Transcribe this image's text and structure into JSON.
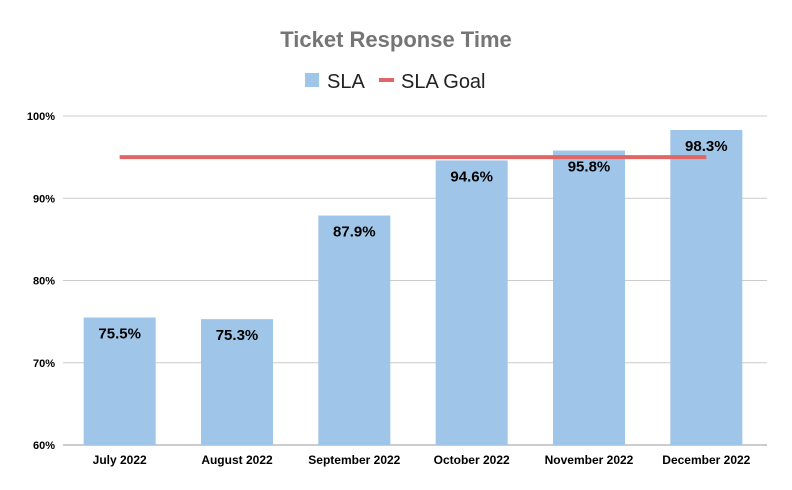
{
  "chart_data": {
    "type": "bar",
    "title": "Ticket Response Time",
    "categories": [
      "July 2022",
      "August 2022",
      "September 2022",
      "October 2022",
      "November 2022",
      "December 2022"
    ],
    "series": [
      {
        "name": "SLA",
        "kind": "bar",
        "color": "#9fc5e8",
        "values": [
          75.5,
          75.3,
          87.9,
          94.6,
          95.8,
          98.3
        ],
        "labels": [
          "75.5%",
          "75.3%",
          "87.9%",
          "94.6%",
          "95.8%",
          "98.3%"
        ]
      },
      {
        "name": "SLA Goal",
        "kind": "line",
        "color": "#e06666",
        "values": [
          95,
          95,
          95,
          95,
          95,
          95
        ]
      }
    ],
    "ylim": [
      60,
      100
    ],
    "yticks": [
      "60%",
      "70%",
      "80%",
      "90%",
      "100%"
    ],
    "ytick_values": [
      60,
      70,
      80,
      90,
      100
    ],
    "xlabel": "",
    "ylabel": "",
    "grid": true,
    "legend_position": "top"
  }
}
